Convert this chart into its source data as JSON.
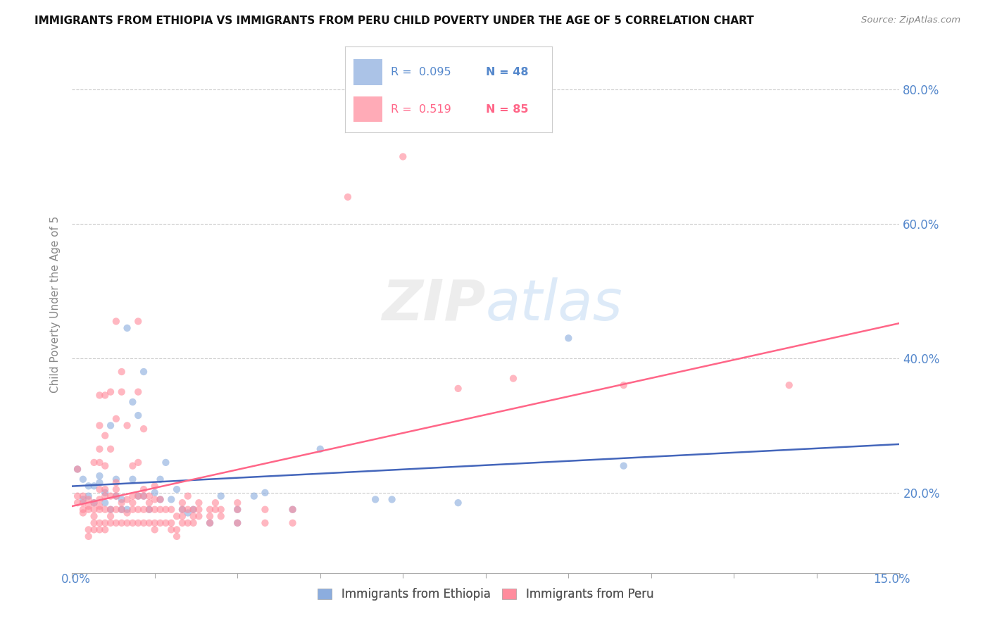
{
  "title": "IMMIGRANTS FROM ETHIOPIA VS IMMIGRANTS FROM PERU CHILD POVERTY UNDER THE AGE OF 5 CORRELATION CHART",
  "source": "Source: ZipAtlas.com",
  "ylabel": "Child Poverty Under the Age of 5",
  "xlim": [
    0.0,
    0.15
  ],
  "ylim": [
    0.08,
    0.88
  ],
  "yticks": [
    0.2,
    0.4,
    0.6,
    0.8
  ],
  "ytick_labels": [
    "20.0%",
    "40.0%",
    "60.0%",
    "80.0%"
  ],
  "color_ethiopia": "#88AADD",
  "color_peru": "#FF8899",
  "color_eth_line": "#4466BB",
  "color_peru_line": "#FF6688",
  "watermark": "ZIPatlas",
  "ethiopia_points": [
    [
      0.001,
      0.235
    ],
    [
      0.002,
      0.19
    ],
    [
      0.002,
      0.22
    ],
    [
      0.003,
      0.21
    ],
    [
      0.003,
      0.195
    ],
    [
      0.004,
      0.185
    ],
    [
      0.004,
      0.21
    ],
    [
      0.005,
      0.215
    ],
    [
      0.005,
      0.225
    ],
    [
      0.006,
      0.2
    ],
    [
      0.006,
      0.185
    ],
    [
      0.007,
      0.175
    ],
    [
      0.007,
      0.3
    ],
    [
      0.008,
      0.195
    ],
    [
      0.008,
      0.22
    ],
    [
      0.009,
      0.175
    ],
    [
      0.009,
      0.19
    ],
    [
      0.01,
      0.175
    ],
    [
      0.01,
      0.445
    ],
    [
      0.011,
      0.335
    ],
    [
      0.011,
      0.22
    ],
    [
      0.012,
      0.315
    ],
    [
      0.012,
      0.195
    ],
    [
      0.013,
      0.38
    ],
    [
      0.013,
      0.195
    ],
    [
      0.014,
      0.175
    ],
    [
      0.015,
      0.2
    ],
    [
      0.016,
      0.19
    ],
    [
      0.016,
      0.22
    ],
    [
      0.017,
      0.245
    ],
    [
      0.018,
      0.19
    ],
    [
      0.019,
      0.205
    ],
    [
      0.02,
      0.175
    ],
    [
      0.021,
      0.17
    ],
    [
      0.022,
      0.175
    ],
    [
      0.025,
      0.155
    ],
    [
      0.027,
      0.195
    ],
    [
      0.03,
      0.155
    ],
    [
      0.03,
      0.175
    ],
    [
      0.033,
      0.195
    ],
    [
      0.035,
      0.2
    ],
    [
      0.04,
      0.175
    ],
    [
      0.045,
      0.265
    ],
    [
      0.055,
      0.19
    ],
    [
      0.058,
      0.19
    ],
    [
      0.07,
      0.185
    ],
    [
      0.09,
      0.43
    ],
    [
      0.1,
      0.24
    ]
  ],
  "peru_points": [
    [
      0.001,
      0.185
    ],
    [
      0.001,
      0.195
    ],
    [
      0.001,
      0.235
    ],
    [
      0.002,
      0.17
    ],
    [
      0.002,
      0.175
    ],
    [
      0.002,
      0.185
    ],
    [
      0.002,
      0.195
    ],
    [
      0.003,
      0.135
    ],
    [
      0.003,
      0.145
    ],
    [
      0.003,
      0.175
    ],
    [
      0.003,
      0.18
    ],
    [
      0.003,
      0.19
    ],
    [
      0.004,
      0.145
    ],
    [
      0.004,
      0.155
    ],
    [
      0.004,
      0.165
    ],
    [
      0.004,
      0.175
    ],
    [
      0.004,
      0.185
    ],
    [
      0.004,
      0.245
    ],
    [
      0.005,
      0.145
    ],
    [
      0.005,
      0.155
    ],
    [
      0.005,
      0.175
    ],
    [
      0.005,
      0.18
    ],
    [
      0.005,
      0.19
    ],
    [
      0.005,
      0.205
    ],
    [
      0.005,
      0.245
    ],
    [
      0.005,
      0.265
    ],
    [
      0.005,
      0.3
    ],
    [
      0.005,
      0.345
    ],
    [
      0.006,
      0.145
    ],
    [
      0.006,
      0.155
    ],
    [
      0.006,
      0.175
    ],
    [
      0.006,
      0.195
    ],
    [
      0.006,
      0.205
    ],
    [
      0.006,
      0.24
    ],
    [
      0.006,
      0.285
    ],
    [
      0.006,
      0.345
    ],
    [
      0.007,
      0.155
    ],
    [
      0.007,
      0.165
    ],
    [
      0.007,
      0.175
    ],
    [
      0.007,
      0.195
    ],
    [
      0.007,
      0.265
    ],
    [
      0.007,
      0.35
    ],
    [
      0.008,
      0.155
    ],
    [
      0.008,
      0.175
    ],
    [
      0.008,
      0.195
    ],
    [
      0.008,
      0.205
    ],
    [
      0.008,
      0.215
    ],
    [
      0.008,
      0.31
    ],
    [
      0.008,
      0.455
    ],
    [
      0.009,
      0.155
    ],
    [
      0.009,
      0.175
    ],
    [
      0.009,
      0.185
    ],
    [
      0.009,
      0.35
    ],
    [
      0.009,
      0.38
    ],
    [
      0.01,
      0.155
    ],
    [
      0.01,
      0.17
    ],
    [
      0.01,
      0.19
    ],
    [
      0.01,
      0.3
    ],
    [
      0.011,
      0.155
    ],
    [
      0.011,
      0.175
    ],
    [
      0.011,
      0.185
    ],
    [
      0.011,
      0.195
    ],
    [
      0.011,
      0.24
    ],
    [
      0.012,
      0.155
    ],
    [
      0.012,
      0.175
    ],
    [
      0.012,
      0.195
    ],
    [
      0.012,
      0.245
    ],
    [
      0.012,
      0.35
    ],
    [
      0.012,
      0.455
    ],
    [
      0.013,
      0.155
    ],
    [
      0.013,
      0.175
    ],
    [
      0.013,
      0.195
    ],
    [
      0.013,
      0.205
    ],
    [
      0.013,
      0.295
    ],
    [
      0.014,
      0.155
    ],
    [
      0.014,
      0.175
    ],
    [
      0.014,
      0.185
    ],
    [
      0.014,
      0.195
    ],
    [
      0.015,
      0.145
    ],
    [
      0.015,
      0.155
    ],
    [
      0.015,
      0.175
    ],
    [
      0.015,
      0.19
    ],
    [
      0.015,
      0.21
    ],
    [
      0.016,
      0.155
    ],
    [
      0.016,
      0.175
    ],
    [
      0.016,
      0.19
    ],
    [
      0.017,
      0.155
    ],
    [
      0.017,
      0.175
    ],
    [
      0.018,
      0.145
    ],
    [
      0.018,
      0.155
    ],
    [
      0.018,
      0.175
    ],
    [
      0.019,
      0.135
    ],
    [
      0.019,
      0.145
    ],
    [
      0.019,
      0.165
    ],
    [
      0.02,
      0.155
    ],
    [
      0.02,
      0.165
    ],
    [
      0.02,
      0.175
    ],
    [
      0.02,
      0.185
    ],
    [
      0.021,
      0.155
    ],
    [
      0.021,
      0.175
    ],
    [
      0.021,
      0.195
    ],
    [
      0.022,
      0.155
    ],
    [
      0.022,
      0.165
    ],
    [
      0.022,
      0.175
    ],
    [
      0.023,
      0.165
    ],
    [
      0.023,
      0.175
    ],
    [
      0.023,
      0.185
    ],
    [
      0.025,
      0.155
    ],
    [
      0.025,
      0.165
    ],
    [
      0.025,
      0.175
    ],
    [
      0.026,
      0.175
    ],
    [
      0.026,
      0.185
    ],
    [
      0.027,
      0.165
    ],
    [
      0.027,
      0.175
    ],
    [
      0.03,
      0.155
    ],
    [
      0.03,
      0.175
    ],
    [
      0.03,
      0.185
    ],
    [
      0.035,
      0.155
    ],
    [
      0.035,
      0.175
    ],
    [
      0.04,
      0.155
    ],
    [
      0.04,
      0.175
    ],
    [
      0.05,
      0.64
    ],
    [
      0.06,
      0.7
    ],
    [
      0.07,
      0.355
    ],
    [
      0.08,
      0.37
    ],
    [
      0.1,
      0.36
    ],
    [
      0.13,
      0.36
    ]
  ]
}
